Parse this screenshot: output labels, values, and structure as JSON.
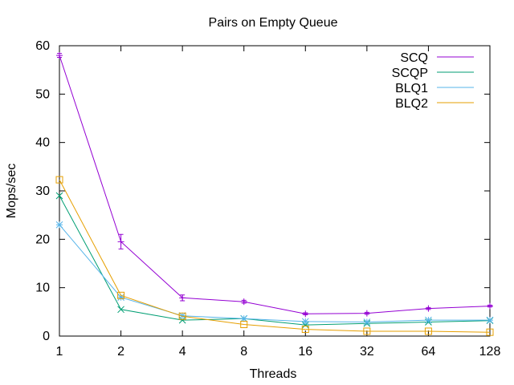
{
  "chart_data": {
    "type": "line",
    "title": "Pairs on Empty Queue",
    "xlabel": "Threads",
    "ylabel": "Mops/sec",
    "x": [
      "1",
      "2",
      "4",
      "8",
      "16",
      "32",
      "64",
      "128"
    ],
    "x_scale": "log2",
    "ylim": [
      0,
      60
    ],
    "yticks": [
      0,
      10,
      20,
      30,
      40,
      50,
      60
    ],
    "grid": false,
    "legend_position": "top-right",
    "series": [
      {
        "name": "SCQ",
        "color": "#9400d3",
        "marker": "plus",
        "values": [
          58.0,
          19.5,
          7.9,
          7.1,
          4.6,
          4.7,
          5.7,
          6.2
        ],
        "error": [
          0.4,
          1.5,
          0.6,
          0.3,
          0.2,
          0.2,
          0.2,
          0.2
        ]
      },
      {
        "name": "SCQP",
        "color": "#009e73",
        "marker": "x",
        "values": [
          29.0,
          5.5,
          3.3,
          3.6,
          2.3,
          2.6,
          2.9,
          3.2
        ]
      },
      {
        "name": "BLQ1",
        "color": "#56b4e9",
        "marker": "star",
        "values": [
          23.0,
          8.0,
          4.2,
          3.6,
          3.0,
          2.9,
          3.3,
          3.3
        ]
      },
      {
        "name": "BLQ2",
        "color": "#e69f00",
        "marker": "square",
        "values": [
          32.3,
          8.4,
          4.1,
          2.4,
          1.4,
          1.0,
          1.0,
          0.8
        ]
      }
    ]
  }
}
